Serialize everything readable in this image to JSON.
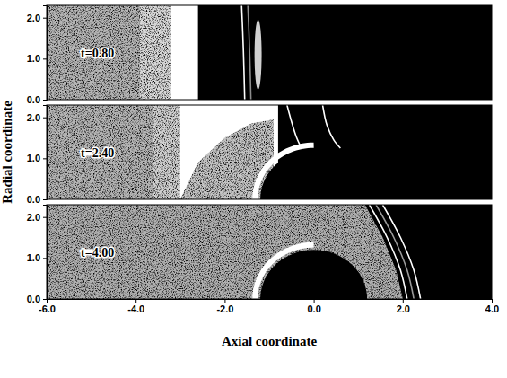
{
  "chart_data": {
    "type": "field",
    "x_label": "Axial coordinate",
    "y_label": "Radial coordinate",
    "xlim": [
      -6,
      4
    ],
    "xticks": [
      {
        "value": -6,
        "label": "-6.0"
      },
      {
        "value": -4,
        "label": "-4.0"
      },
      {
        "value": -2,
        "label": "-2.0"
      },
      {
        "value": 0,
        "label": "0.0"
      },
      {
        "value": 2,
        "label": "2.0"
      },
      {
        "value": 4,
        "label": "4.0"
      }
    ],
    "ylim": [
      0,
      2.3
    ],
    "yticks": [
      {
        "value": 0,
        "label": "0.0"
      },
      {
        "value": 1,
        "label": "1.0"
      },
      {
        "value": 2,
        "label": "2.0"
      }
    ],
    "panels": [
      {
        "label": "t=0.80",
        "regions": [
          {
            "x": [
              -6,
              -3.9,
              -3.9,
              -6
            ],
            "y": [
              0,
              0,
              2.3,
              2.3
            ],
            "color": "#b5b5b5"
          },
          {
            "x": [
              -3.9,
              -3.2,
              -3.2,
              -3.9
            ],
            "y": [
              0,
              0,
              2.3,
              2.3
            ],
            "color": "#d8d8d8"
          },
          {
            "x": [
              -3.2,
              -2.6,
              -2.6,
              -3.2
            ],
            "y": [
              0,
              0,
              2.3,
              2.3
            ],
            "color": "#ffffff"
          },
          {
            "x": [
              -2.6,
              4,
              4,
              -2.6
            ],
            "y": [
              0,
              0,
              2.3,
              2.3
            ],
            "color": "#000000"
          }
        ],
        "bodies": [
          {
            "cx": -1.25,
            "cy": 1.1,
            "rx": 0.08,
            "ry": 0.85,
            "color": "#d0d0d0"
          }
        ],
        "fronts": [
          {
            "x": [
              -1.62,
              -1.58,
              -1.55
            ],
            "y": [
              2.3,
              1.2,
              0
            ],
            "color": "#ffffff"
          },
          {
            "x": [
              -1.48,
              -1.44,
              -1.41
            ],
            "y": [
              2.3,
              1.2,
              0
            ],
            "color": "#8c8c8c"
          }
        ]
      },
      {
        "label": "t=2.40",
        "regions": [
          {
            "x": [
              -6,
              -3.6,
              -3.6,
              -6
            ],
            "y": [
              0,
              0,
              2.3,
              2.3
            ],
            "color": "#b5b5b5"
          },
          {
            "x": [
              -3.6,
              -3.0,
              -3.0,
              -3.6
            ],
            "y": [
              0,
              0,
              2.3,
              2.3
            ],
            "color": "#d0d0d0"
          },
          {
            "x": [
              -3.0,
              -0.8,
              -0.8,
              -3.0
            ],
            "y": [
              0,
              0,
              2.3,
              2.3
            ],
            "color": "#ffffff"
          },
          {
            "x": [
              -3.0,
              -2.6,
              -2.0,
              -1.4,
              -0.9,
              -0.9,
              -3.0
            ],
            "y": [
              0,
              0.9,
              1.5,
              1.85,
              1.95,
              0,
              0
            ],
            "color": "#c4c4c4"
          },
          {
            "x": [
              -0.8,
              4,
              4,
              -0.8
            ],
            "y": [
              0,
              0,
              2.3,
              2.3
            ],
            "color": "#000000"
          }
        ],
        "bodies": [
          {
            "cx": 0,
            "cy": 0,
            "rx": 1.2,
            "ry": 1.2,
            "color": "#000000",
            "halo": "#ffffff"
          }
        ],
        "fronts": [
          {
            "x": [
              -0.6,
              -0.5,
              -0.4,
              -0.3
            ],
            "y": [
              2.3,
              1.9,
              1.55,
              1.3
            ],
            "color": "#ffffff"
          },
          {
            "x": [
              0.2,
              0.3,
              0.45,
              0.6
            ],
            "y": [
              2.3,
              1.8,
              1.45,
              1.25
            ],
            "color": "#ffffff"
          }
        ]
      },
      {
        "label": "t=4.00",
        "regions": [
          {
            "x": [
              -6,
              1.15,
              1.55,
              1.85,
              2.0,
              -6
            ],
            "y": [
              2.3,
              2.3,
              1.5,
              0.7,
              0,
              0
            ],
            "color": "#b0b0b0"
          },
          {
            "x": [
              1.15,
              4,
              4,
              2.0,
              1.85,
              1.55
            ],
            "y": [
              2.3,
              2.3,
              0,
              0,
              0.7,
              1.5
            ],
            "color": "#000000"
          }
        ],
        "bodies": [
          {
            "cx": 0,
            "cy": 0,
            "rx": 1.2,
            "ry": 1.2,
            "color": "#000000",
            "halo": "#ffffff"
          }
        ],
        "fronts": [
          {
            "x": [
              1.25,
              1.65,
              1.95,
              2.1
            ],
            "y": [
              2.3,
              1.5,
              0.7,
              0
            ],
            "color": "#ffffff"
          },
          {
            "x": [
              1.4,
              1.8,
              2.1,
              2.25
            ],
            "y": [
              2.3,
              1.5,
              0.7,
              0
            ],
            "color": "#9a9a9a"
          },
          {
            "x": [
              1.55,
              1.95,
              2.25,
              2.4
            ],
            "y": [
              2.3,
              1.5,
              0.7,
              0
            ],
            "color": "#ffffff"
          }
        ]
      }
    ]
  }
}
